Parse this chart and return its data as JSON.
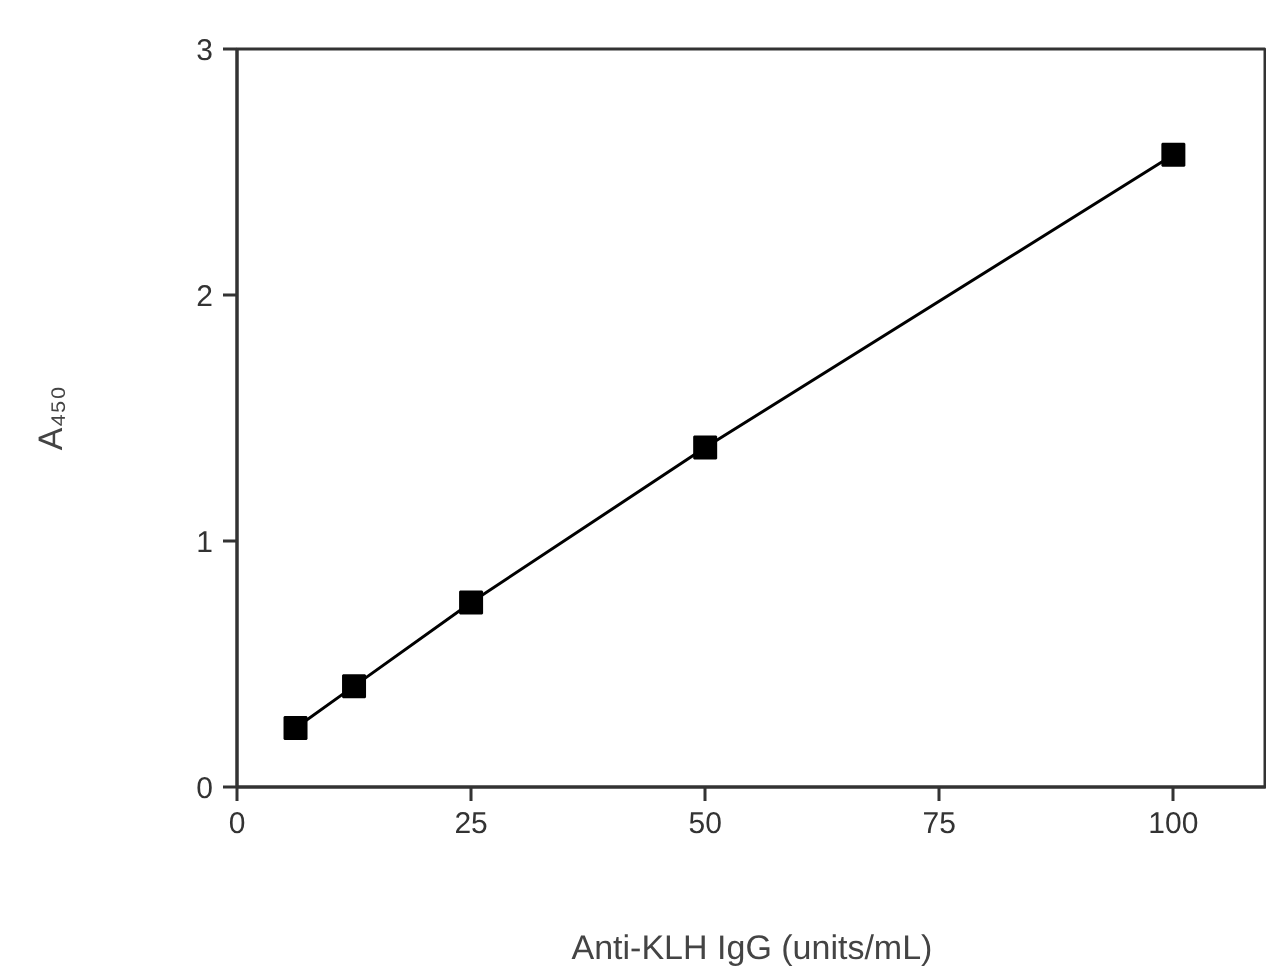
{
  "chart_data": {
    "type": "line",
    "xlabel": "Anti-KLH IgG (units/mL)",
    "ylabel": "A₄₅₀",
    "x": [
      6.25,
      12.5,
      25,
      50,
      100
    ],
    "series": [
      {
        "color": "#000000",
        "values": [
          0.24,
          0.41,
          0.75,
          1.38,
          2.57
        ]
      }
    ],
    "xlim": [
      0,
      110
    ],
    "ylim": [
      0,
      3
    ],
    "xticks": [
      0,
      25,
      50,
      75,
      100
    ],
    "yticks": [
      0,
      1,
      2,
      3
    ],
    "marker": "square",
    "line_style": "solid",
    "grid": false
  }
}
